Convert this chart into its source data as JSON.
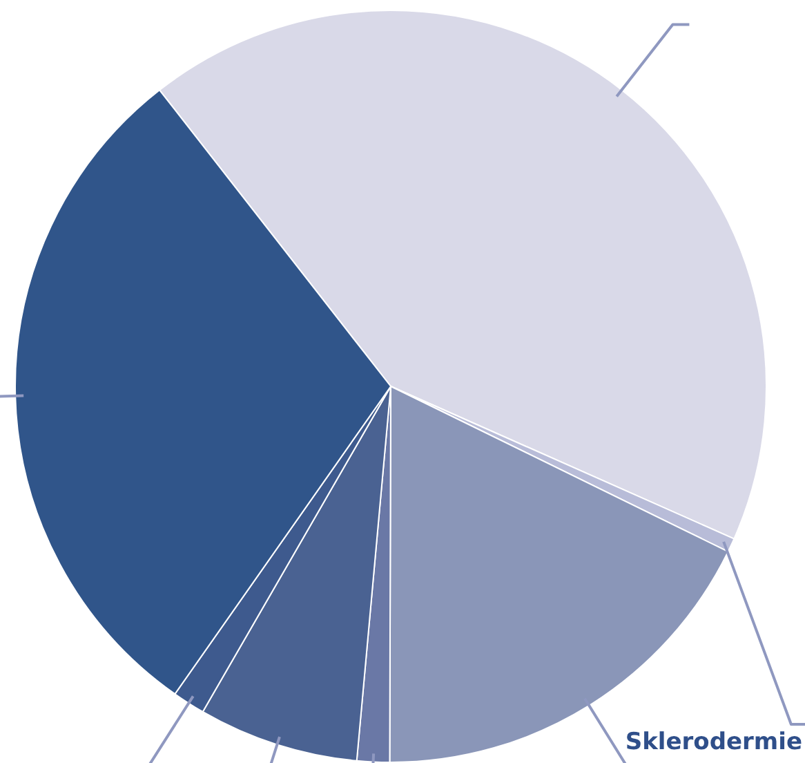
{
  "chart_data": {
    "type": "pie",
    "categories": [
      null,
      "Sklerodermie",
      null,
      null,
      null,
      null,
      null
    ],
    "values": [
      42.2,
      0.6,
      17.8,
      1.4,
      6.9,
      1.4,
      29.7
    ],
    "colors": [
      "#d9d9e8",
      "#b8bcd8",
      "#8a96b8",
      "#6a78a6",
      "#4a6292",
      "#3e5a8e",
      "#30558a"
    ],
    "legend": false
  }
}
